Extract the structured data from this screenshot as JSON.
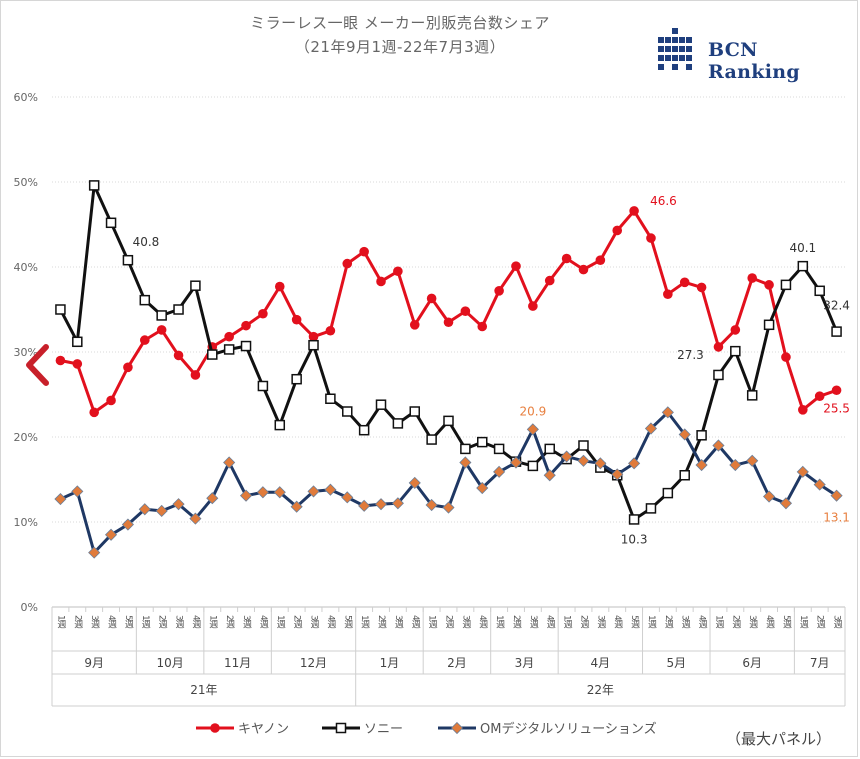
{
  "header": {
    "title": "ミラーレス一眼 メーカー別販売台数シェア",
    "subtitle": "（21年9月1週-22年7月3週）",
    "logo_text": "BCN Ranking"
  },
  "note": "（最大パネル）",
  "colors": {
    "canon": "#e2101d",
    "sony": "#111111",
    "om": "#1f3864",
    "om_marker": "#e07b3b",
    "annot_om": "#e88040"
  },
  "chart_data": {
    "type": "line",
    "title": "ミラーレス一眼 メーカー別販売台数シェア",
    "subtitle": "（21年9月1週-22年7月3週）",
    "xlabel": "",
    "ylabel": "",
    "ylim": [
      0,
      60
    ],
    "yticks": [
      "0%",
      "10%",
      "20%",
      "30%",
      "40%",
      "50%",
      "60%"
    ],
    "grid": true,
    "legend": "bottom",
    "weeks": [
      "1週",
      "2週",
      "3週",
      "4週",
      "5週",
      "1週",
      "2週",
      "3週",
      "4週",
      "1週",
      "2週",
      "3週",
      "4週",
      "1週",
      "2週",
      "3週",
      "4週",
      "5週",
      "1週",
      "2週",
      "3週",
      "4週",
      "1週",
      "2週",
      "3週",
      "4週",
      "1週",
      "2週",
      "3週",
      "4週",
      "1週",
      "2週",
      "3週",
      "4週",
      "5週",
      "1週",
      "2週",
      "3週",
      "4週",
      "1週",
      "2週",
      "3週",
      "4週",
      "5週",
      "1週",
      "2週",
      "3週"
    ],
    "months": [
      {
        "label": "9月",
        "count": 5
      },
      {
        "label": "10月",
        "count": 4
      },
      {
        "label": "11月",
        "count": 4
      },
      {
        "label": "12月",
        "count": 5
      },
      {
        "label": "1月",
        "count": 4
      },
      {
        "label": "2月",
        "count": 4
      },
      {
        "label": "3月",
        "count": 4
      },
      {
        "label": "4月",
        "count": 5
      },
      {
        "label": "5月",
        "count": 4
      },
      {
        "label": "6月",
        "count": 5
      },
      {
        "label": "7月",
        "count": 3
      }
    ],
    "years": [
      {
        "label": "21年",
        "count": 18
      },
      {
        "label": "22年",
        "count": 29
      }
    ],
    "series": [
      {
        "name": "キヤノン",
        "key": "canon",
        "values": [
          29.0,
          28.6,
          22.9,
          24.3,
          28.2,
          31.4,
          32.6,
          29.6,
          27.3,
          30.6,
          31.8,
          33.1,
          34.5,
          37.7,
          33.8,
          31.8,
          32.5,
          40.4,
          41.8,
          38.3,
          39.5,
          33.2,
          36.3,
          33.5,
          34.8,
          33.0,
          37.2,
          40.1,
          35.4,
          38.4,
          41.0,
          39.7,
          40.8,
          44.3,
          46.6,
          43.4,
          36.8,
          38.2,
          37.6,
          30.6,
          32.6,
          38.7,
          37.9,
          29.4,
          23.2,
          24.8,
          25.5
        ]
      },
      {
        "name": "ソニー",
        "key": "sony",
        "values": [
          35.0,
          31.2,
          49.6,
          45.2,
          40.8,
          36.1,
          34.3,
          35.0,
          37.8,
          29.7,
          30.3,
          30.7,
          26.0,
          21.4,
          26.8,
          30.8,
          24.5,
          23.0,
          20.8,
          23.8,
          21.6,
          23.0,
          19.7,
          21.9,
          18.6,
          19.4,
          18.6,
          17.1,
          16.6,
          18.6,
          17.4,
          19.0,
          16.4,
          15.5,
          10.3,
          11.6,
          13.4,
          15.5,
          20.2,
          27.3,
          30.1,
          24.9,
          33.2,
          37.9,
          40.1,
          37.2,
          32.4
        ]
      },
      {
        "name": "OMデジタルソリューションズ",
        "key": "om",
        "values": [
          12.7,
          13.6,
          6.4,
          8.5,
          9.7,
          11.5,
          11.3,
          12.1,
          10.4,
          12.8,
          17.0,
          13.1,
          13.5,
          13.5,
          11.8,
          13.6,
          13.8,
          12.9,
          11.9,
          12.1,
          12.2,
          14.6,
          12.0,
          11.7,
          17.0,
          14.0,
          15.9,
          17.0,
          20.9,
          15.5,
          17.7,
          17.2,
          16.9,
          15.6,
          16.9,
          21.0,
          22.9,
          20.3,
          16.7,
          19.0,
          16.7,
          17.2,
          13.0,
          12.2,
          15.9,
          14.4,
          13.1
        ]
      }
    ],
    "annotations": [
      {
        "series": "canon",
        "index": 34,
        "text": "46.6"
      },
      {
        "series": "canon",
        "index": 46,
        "text": "25.5"
      },
      {
        "series": "sony",
        "index": 4,
        "text": "40.8"
      },
      {
        "series": "sony",
        "index": 34,
        "text": "10.3"
      },
      {
        "series": "sony",
        "index": 39,
        "text": "27.3"
      },
      {
        "series": "sony",
        "index": 44,
        "text": "40.1"
      },
      {
        "series": "sony",
        "index": 46,
        "text": "32.4"
      },
      {
        "series": "om",
        "index": 28,
        "text": "20.9"
      },
      {
        "series": "om",
        "index": 46,
        "text": "13.1"
      }
    ]
  }
}
